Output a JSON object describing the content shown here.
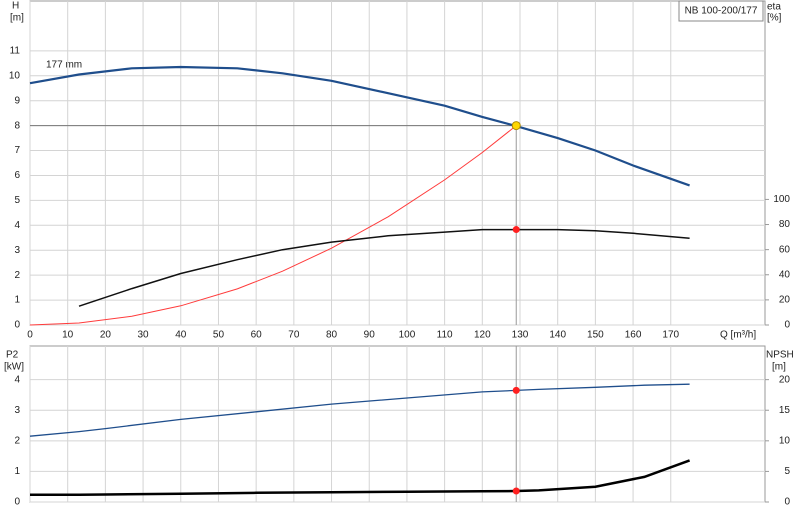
{
  "chart_data": [
    {
      "type": "line",
      "title": "NB 100-200/177",
      "annotation": "177 mm",
      "ylabel": "H",
      "yunit": "[m]",
      "y2label": "eta",
      "y2unit": "[%]",
      "xlabel": "Q [m³/h]",
      "x": [
        0,
        13,
        27,
        40,
        55,
        67,
        80,
        95,
        110,
        120,
        129,
        140,
        150,
        160,
        175
      ],
      "xlim": [
        0,
        195
      ],
      "xticks": [
        0,
        10,
        20,
        30,
        40,
        50,
        60,
        70,
        80,
        90,
        100,
        110,
        120,
        130,
        140,
        150,
        160,
        170
      ],
      "ylim": [
        0,
        13
      ],
      "yticks": [
        0,
        1,
        2,
        3,
        4,
        5,
        6,
        7,
        8,
        9,
        10,
        11
      ],
      "y2lim": [
        0,
        258
      ],
      "y2ticks": [
        0,
        20,
        40,
        60,
        80,
        100
      ],
      "grid": true,
      "series": [
        {
          "color": "#1f4e8c",
          "width": 2.2,
          "values": [
            9.7,
            10.05,
            10.3,
            10.35,
            10.3,
            10.1,
            9.8,
            9.3,
            8.8,
            8.35,
            7.98,
            7.5,
            7.0,
            6.4,
            5.6
          ]
        },
        {
          "color": "#ff3b3b",
          "width": 1,
          "values": [
            0,
            0.08,
            0.35,
            0.77,
            1.45,
            2.16,
            3.08,
            4.34,
            5.82,
            6.92,
            8.0,
            null,
            null,
            null,
            null
          ]
        },
        {
          "color": "#111111",
          "width": 1.5,
          "axis": "y2",
          "values": [
            null,
            15,
            29,
            41,
            52,
            60,
            66,
            71,
            74,
            76,
            76,
            76,
            75,
            73,
            69
          ]
        }
      ],
      "duty_point": {
        "x": 129,
        "y": 8,
        "eta": 76
      }
    },
    {
      "type": "line",
      "ylabel": "P2",
      "yunit": "[kW]",
      "y2label": "NPSH",
      "y2unit": "[m]",
      "x": [
        0,
        13,
        20,
        40,
        60,
        80,
        100,
        120,
        129,
        135,
        150,
        163,
        175
      ],
      "xlim": [
        0,
        195
      ],
      "xticks": [
        0,
        10,
        20,
        30,
        40,
        50,
        60,
        70,
        80,
        90,
        100,
        110,
        120,
        130,
        140,
        150,
        160,
        170
      ],
      "ylim": [
        0,
        5.1
      ],
      "yticks": [
        0,
        1,
        2,
        3,
        4
      ],
      "y2lim": [
        0,
        25.5
      ],
      "y2ticks": [
        0,
        5,
        10,
        15,
        20
      ],
      "grid": true,
      "series": [
        {
          "color": "#1f4e8c",
          "width": 1.3,
          "values": [
            2.15,
            2.3,
            2.4,
            2.7,
            2.95,
            3.2,
            3.4,
            3.6,
            3.65,
            3.68,
            3.75,
            3.82,
            3.85
          ]
        },
        {
          "color": "#000000",
          "width": 2.5,
          "axis": "y2",
          "values": [
            1.2,
            1.2,
            1.22,
            1.35,
            1.5,
            1.6,
            1.68,
            1.75,
            1.8,
            1.9,
            2.5,
            4.1,
            6.8
          ]
        }
      ],
      "duty_point": {
        "x": 129,
        "y": 3.65,
        "y2": 1.8
      }
    }
  ]
}
